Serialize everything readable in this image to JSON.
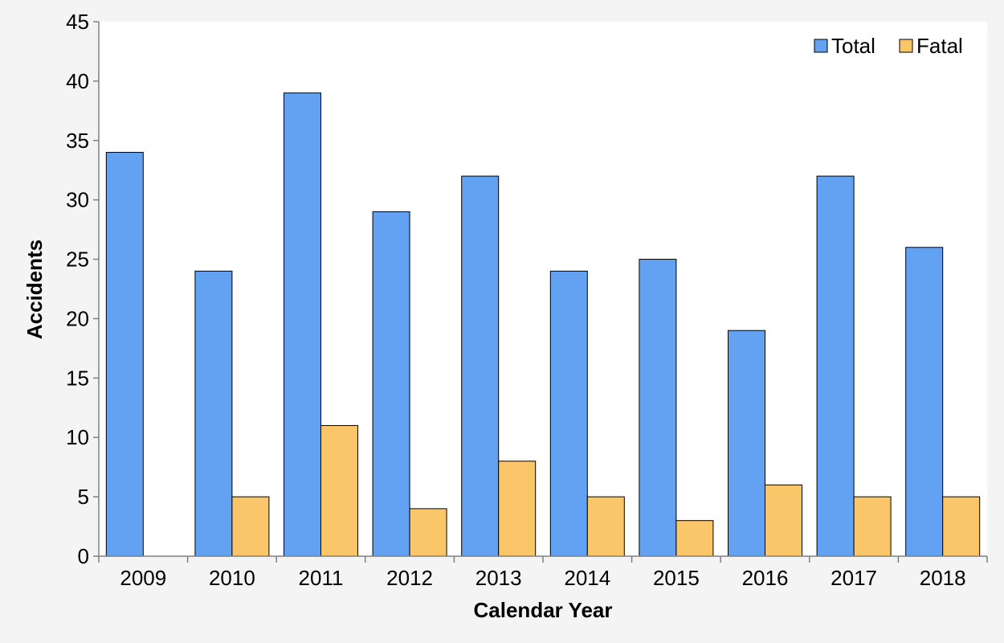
{
  "chart_data": {
    "type": "bar",
    "title": "",
    "xlabel": "Calendar Year",
    "ylabel": "Accidents",
    "categories": [
      "2009",
      "2010",
      "2011",
      "2012",
      "2013",
      "2014",
      "2015",
      "2016",
      "2017",
      "2018"
    ],
    "series": [
      {
        "name": "Total",
        "values": [
          34,
          24,
          39,
          29,
          32,
          24,
          25,
          19,
          32,
          26
        ],
        "color": "#63a2f2"
      },
      {
        "name": "Fatal",
        "values": [
          0,
          5,
          11,
          4,
          8,
          5,
          3,
          6,
          5,
          5
        ],
        "color": "#fbc66a"
      }
    ],
    "ylim": [
      0,
      45
    ],
    "yticks": [
      0,
      5,
      10,
      15,
      20,
      25,
      30,
      35,
      40,
      45
    ],
    "grid": false,
    "legend": "top-right",
    "plot_background": "#ffffff",
    "page_background": "#f4f4f4"
  }
}
